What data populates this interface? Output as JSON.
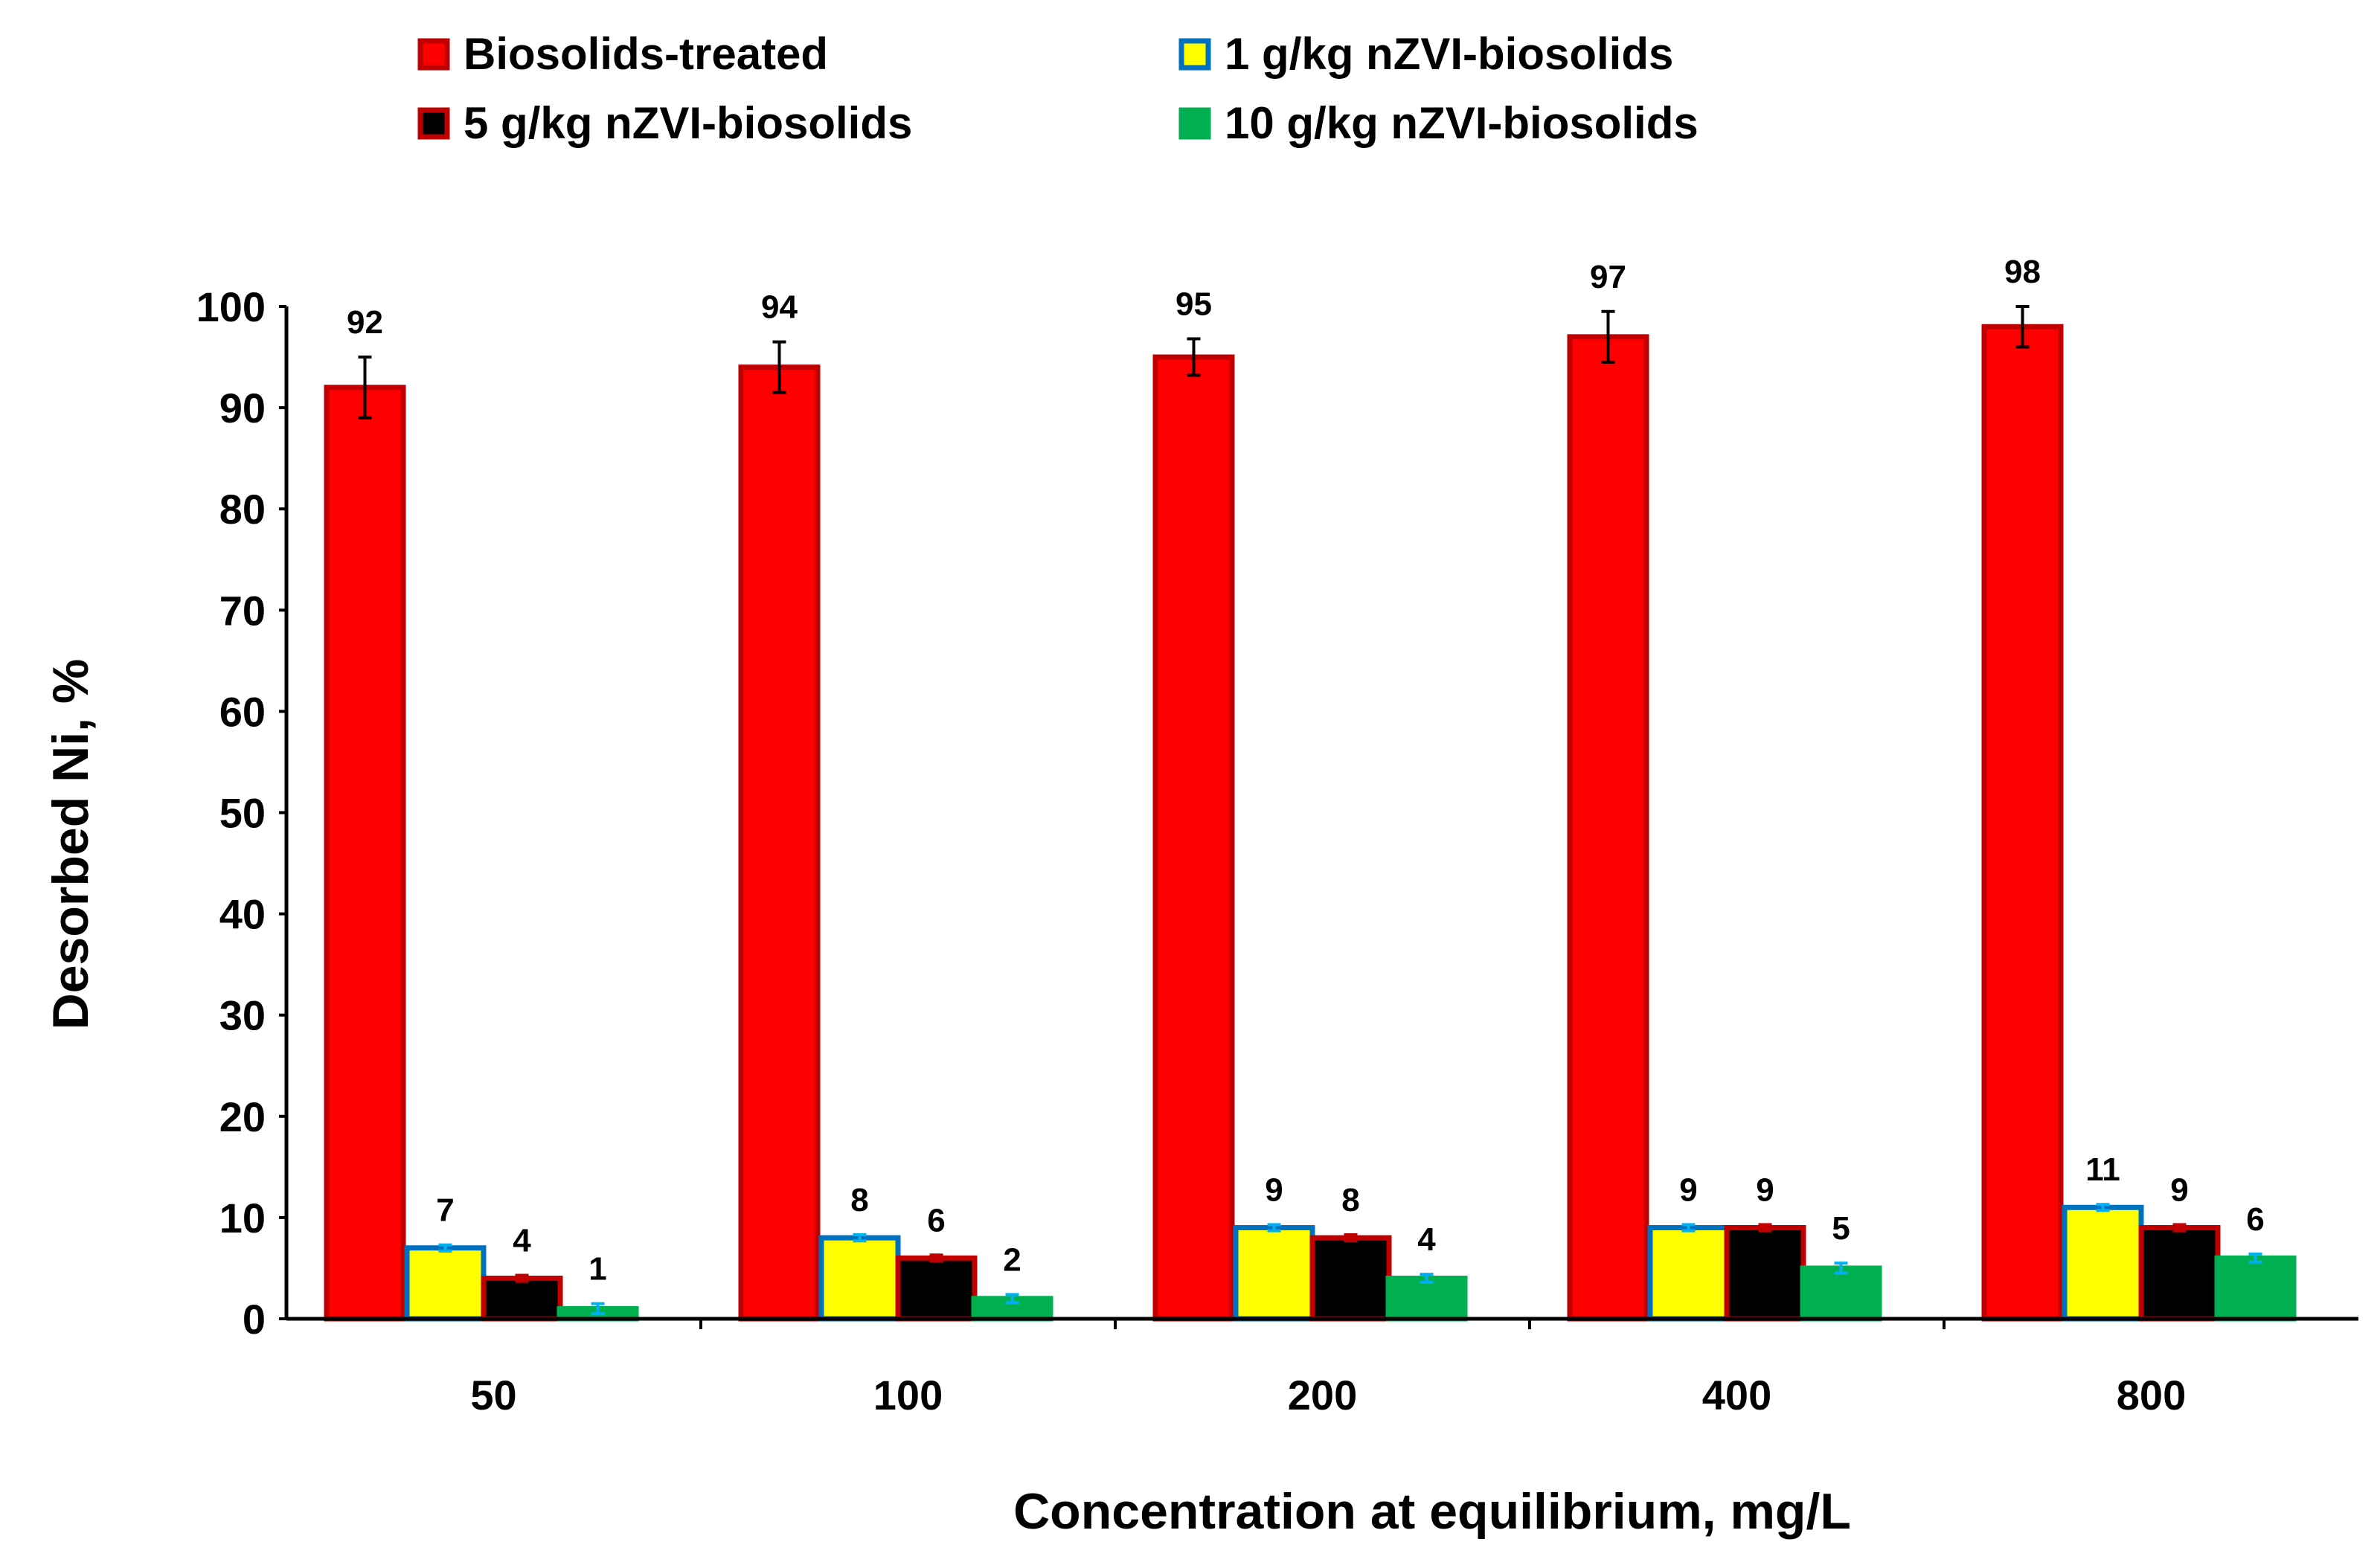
{
  "chart_data": {
    "type": "bar",
    "title": "",
    "xlabel": "Concentration at equilibrium, mg/L",
    "ylabel": "Desorbed Ni, %",
    "ylim": [
      0,
      100
    ],
    "yticks": [
      0,
      10,
      20,
      30,
      40,
      50,
      60,
      70,
      80,
      90,
      100
    ],
    "categories": [
      "50",
      "100",
      "200",
      "400",
      "800"
    ],
    "series": [
      {
        "name": "Biosolids-treated",
        "values": [
          92,
          94,
          95,
          97,
          98
        ],
        "errors": [
          3,
          2.5,
          1.8,
          2.5,
          2
        ],
        "fill": "#ff0000",
        "stroke": "#c00000",
        "error_color": "#000000"
      },
      {
        "name": "1 g/kg nZVI-biosolids",
        "values": [
          7,
          8,
          9,
          9,
          11
        ],
        "errors": [
          0.3,
          0.3,
          0.3,
          0.3,
          0.3
        ],
        "fill": "#ffff00",
        "stroke": "#0070c0",
        "error_color": "#00b0f0"
      },
      {
        "name": "5 g/kg nZVI-biosolids",
        "values": [
          4,
          6,
          8,
          9,
          9
        ],
        "errors": [
          0.3,
          0.3,
          0.3,
          0.3,
          0.3
        ],
        "fill": "#000000",
        "stroke": "#c00000",
        "error_color": "#c00000"
      },
      {
        "name": "10 g/kg nZVI-biosolids",
        "values": [
          1,
          2,
          4,
          5,
          6
        ],
        "errors": [
          0.5,
          0.4,
          0.4,
          0.5,
          0.4
        ],
        "fill": "#00b050",
        "stroke": "#00b050",
        "error_color": "#00b0f0"
      }
    ],
    "data_labels": [
      [
        "92",
        "94",
        "95",
        "97",
        "98"
      ],
      [
        "7",
        "8",
        "9",
        "9",
        "11"
      ],
      [
        "4",
        "6",
        "8",
        "9",
        "9"
      ],
      [
        "1",
        "2",
        "4",
        "5",
        "6"
      ]
    ],
    "legend_placement": "top",
    "grid": false
  }
}
